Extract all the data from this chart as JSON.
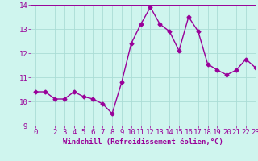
{
  "x": [
    0,
    1,
    2,
    3,
    4,
    5,
    6,
    7,
    8,
    9,
    10,
    11,
    12,
    13,
    14,
    15,
    16,
    17,
    18,
    19,
    20,
    21,
    22,
    23
  ],
  "y": [
    10.4,
    10.4,
    10.1,
    10.1,
    10.4,
    10.2,
    10.1,
    9.9,
    9.5,
    10.8,
    12.4,
    13.2,
    13.9,
    13.2,
    12.9,
    12.1,
    13.5,
    12.9,
    11.55,
    11.3,
    11.1,
    11.3,
    11.75,
    11.4
  ],
  "line_color": "#990099",
  "marker": "D",
  "marker_size": 2.5,
  "bg_color": "#cff5ee",
  "grid_color": "#aaddd5",
  "xlabel": "Windchill (Refroidissement éolien,°C)",
  "xlim": [
    -0.5,
    23
  ],
  "ylim": [
    9,
    14
  ],
  "yticks": [
    9,
    10,
    11,
    12,
    13,
    14
  ],
  "xticks": [
    0,
    2,
    3,
    4,
    5,
    6,
    7,
    8,
    9,
    10,
    11,
    12,
    13,
    14,
    15,
    16,
    17,
    18,
    19,
    20,
    21,
    22,
    23
  ],
  "tick_color": "#990099",
  "label_color": "#990099",
  "font_family": "monospace",
  "xlabel_fontsize": 6.5,
  "tick_fontsize": 6.5,
  "linewidth": 1.0
}
